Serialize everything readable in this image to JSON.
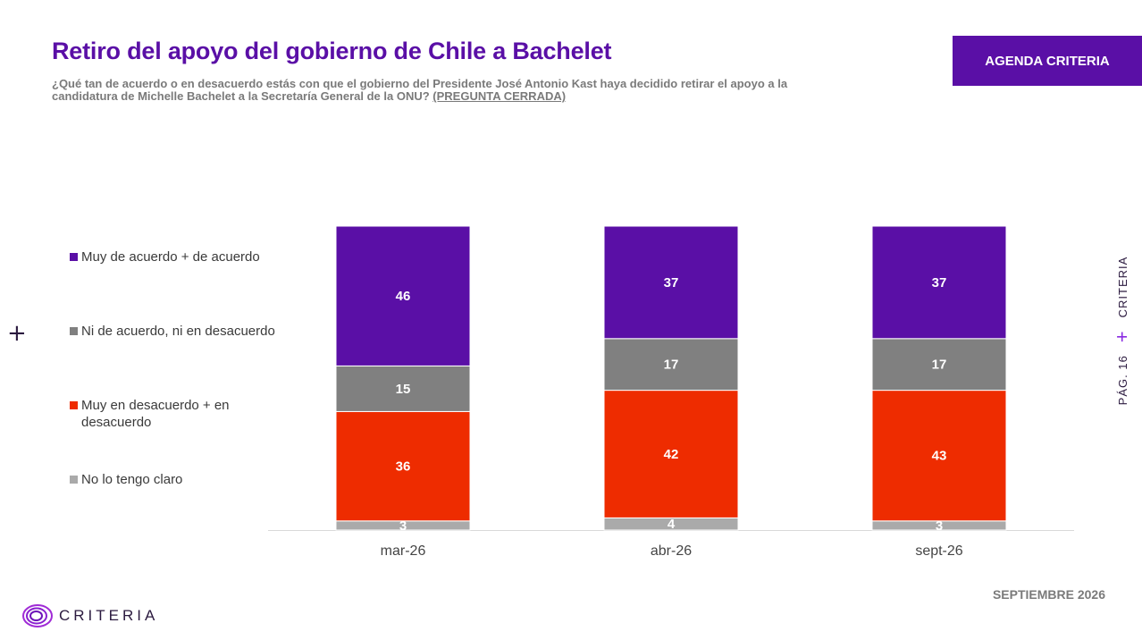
{
  "header": {
    "title": "Retiro del apoyo del gobierno de Chile a Bachelet",
    "subtitle": "¿Qué tan de acuerdo o en desacuerdo estás con que el gobierno del Presidente José Antonio Kast haya decidido retirar el apoyo a la candidatura de Michelle Bachelet a la Secretaría General de la ONU?",
    "subtitle_tag": "(PREGUNTA CERRADA)",
    "badge": "AGENDA CRITERIA"
  },
  "side": {
    "page": "PÁG. 16",
    "brand": "CRITERIA"
  },
  "footer": {
    "date": "SEPTIEMBRE 2026",
    "logo_text": "CRITERIA"
  },
  "icons": {
    "plus": "plus-icon",
    "logo": "criteria-spiral-logo"
  },
  "chart_data": {
    "type": "bar",
    "stacked": true,
    "categories": [
      "mar-26",
      "abr-26",
      "sept-26"
    ],
    "series": [
      {
        "name": "No lo tengo claro",
        "values": [
          3,
          4,
          3
        ],
        "color": "#aaaaaa"
      },
      {
        "name": "Muy en desacuerdo + en desacuerdo",
        "values": [
          36,
          42,
          43
        ],
        "color": "#ee2c00"
      },
      {
        "name": "Ni de acuerdo, ni en desacuerdo",
        "values": [
          15,
          17,
          17
        ],
        "color": "#808080"
      },
      {
        "name": "Muy de acuerdo + de acuerdo",
        "values": [
          46,
          37,
          37
        ],
        "color": "#5a0fa6"
      }
    ],
    "legend_order": [
      "Muy de acuerdo + de acuerdo",
      "Ni de acuerdo, ni en desacuerdo",
      "Muy en desacuerdo + en desacuerdo",
      "No lo tengo claro"
    ],
    "ylim": [
      0,
      100
    ],
    "grid": false,
    "legend_position": "left"
  }
}
